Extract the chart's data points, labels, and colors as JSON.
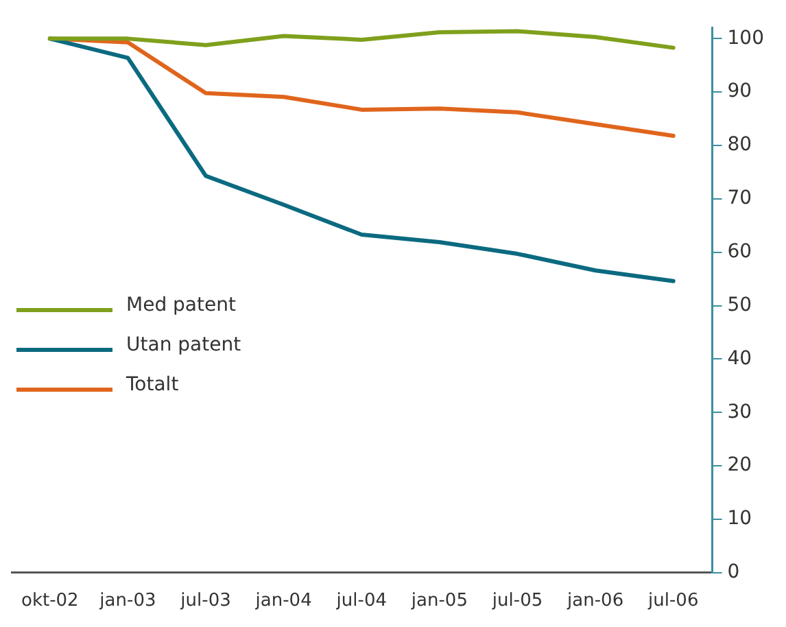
{
  "chart_data": {
    "type": "line",
    "categories": [
      "okt-02",
      "jan-03",
      "jul-03",
      "jan-04",
      "jul-04",
      "jan-05",
      "jul-05",
      "jan-06",
      "jul-06"
    ],
    "series": [
      {
        "name": "Med patent",
        "color": "#7fa01c",
        "values": [
          100,
          100,
          98.8,
          100.5,
          99.8,
          101.2,
          101.4,
          100.3,
          98.3
        ]
      },
      {
        "name": "Utan patent",
        "color": "#0b6a80",
        "values": [
          100,
          96.4,
          74.3,
          68.9,
          63.3,
          61.9,
          59.7,
          56.6,
          54.6
        ]
      },
      {
        "name": "Totalt",
        "color": "#e0651c",
        "values": [
          100,
          99.3,
          89.8,
          89.1,
          86.7,
          86.9,
          86.2,
          84,
          81.8
        ]
      }
    ],
    "ylim": [
      0,
      102
    ],
    "yticks": [
      0,
      10,
      20,
      30,
      40,
      50,
      60,
      70,
      80,
      90,
      100
    ],
    "grid": false,
    "legend": "center left",
    "marker": "none",
    "line_style": "solid"
  }
}
